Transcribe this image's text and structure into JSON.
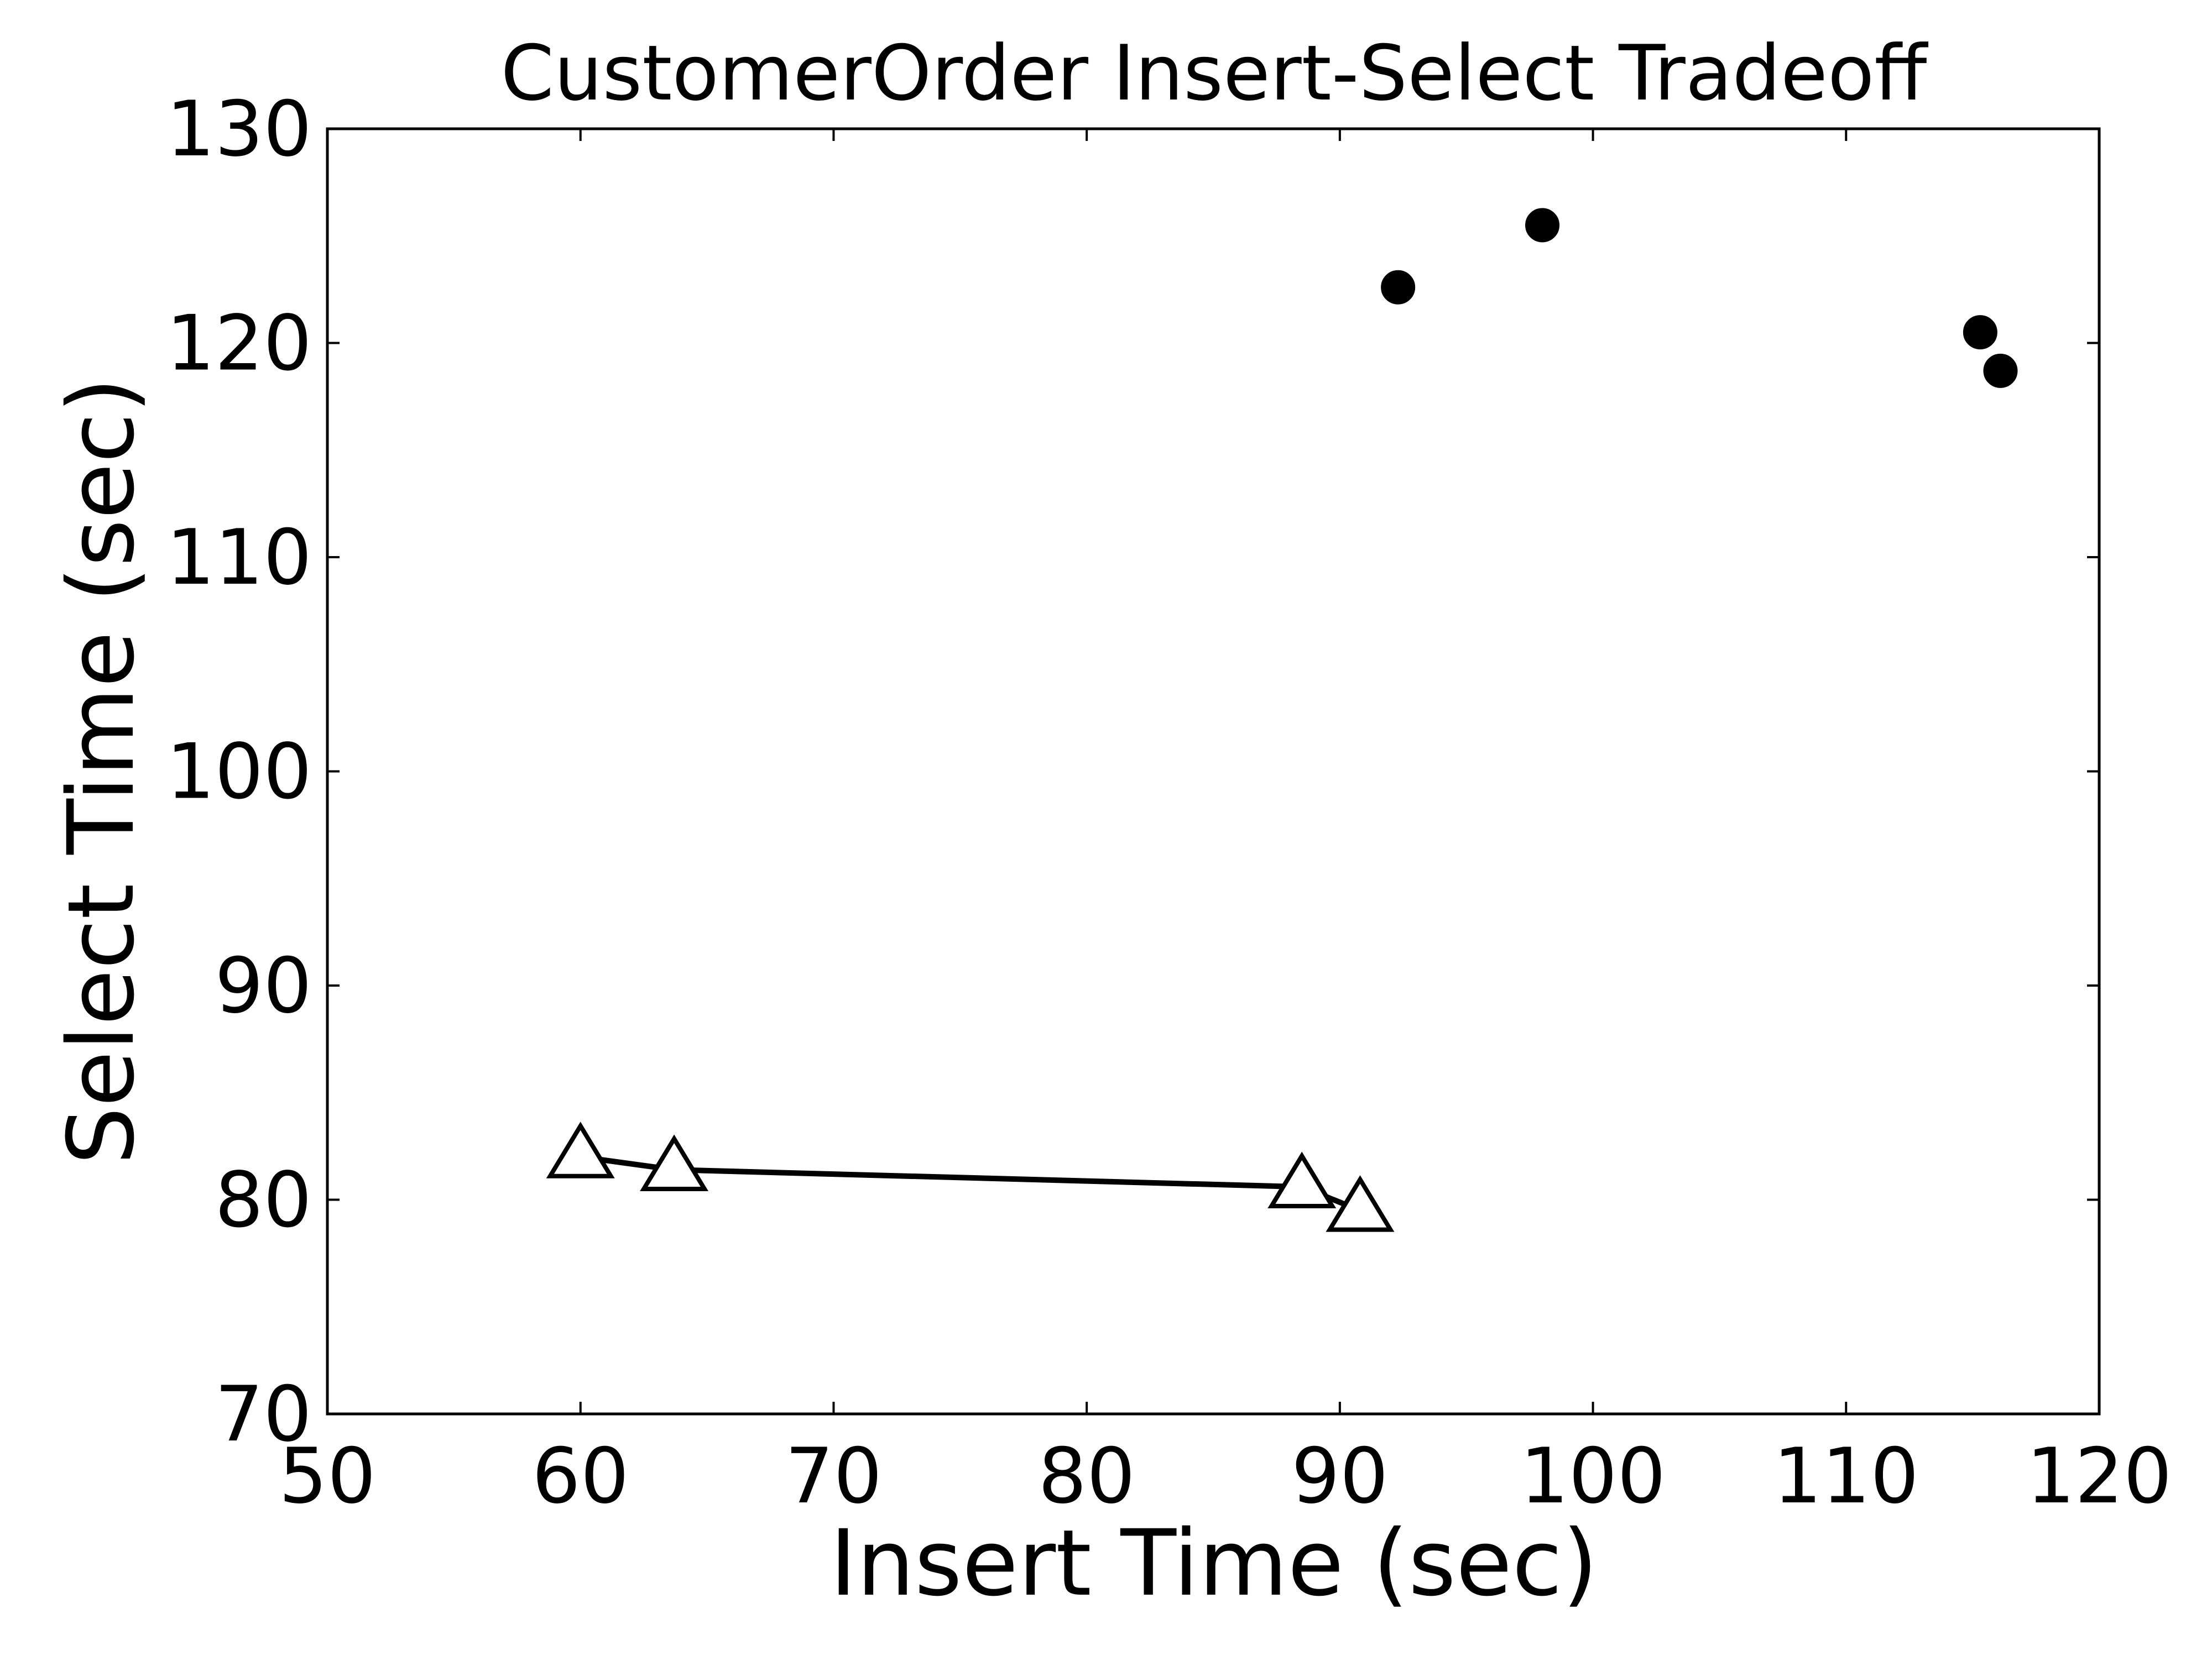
{
  "chart_data": {
    "type": "scatter",
    "title": "CustomerOrder Insert-Select Tradeoff",
    "xlabel": "Insert Time (sec)",
    "ylabel": "Select Time (sec)",
    "xlim": [
      50,
      120
    ],
    "ylim": [
      70,
      130
    ],
    "xticks": [
      50,
      60,
      70,
      80,
      90,
      100,
      110,
      120
    ],
    "yticks": [
      70,
      80,
      90,
      100,
      110,
      120,
      130
    ],
    "xtick_labels": [
      "50",
      "60",
      "70",
      "80",
      "90",
      "100",
      "110",
      "120"
    ],
    "ytick_labels": [
      "70",
      "80",
      "90",
      "100",
      "110",
      "120",
      "130"
    ],
    "grid": false,
    "series": [
      {
        "marker": "triangle-open",
        "line": true,
        "color": "#000000",
        "points": [
          {
            "x": 60.0,
            "y": 82.0
          },
          {
            "x": 63.7,
            "y": 81.4
          },
          {
            "x": 88.5,
            "y": 80.6
          },
          {
            "x": 90.8,
            "y": 79.5
          }
        ]
      },
      {
        "marker": "circle-filled",
        "line": false,
        "color": "#000000",
        "points": [
          {
            "x": 92.3,
            "y": 122.6
          },
          {
            "x": 98.0,
            "y": 125.5
          },
          {
            "x": 115.3,
            "y": 120.5
          },
          {
            "x": 116.1,
            "y": 118.7
          }
        ]
      }
    ]
  }
}
